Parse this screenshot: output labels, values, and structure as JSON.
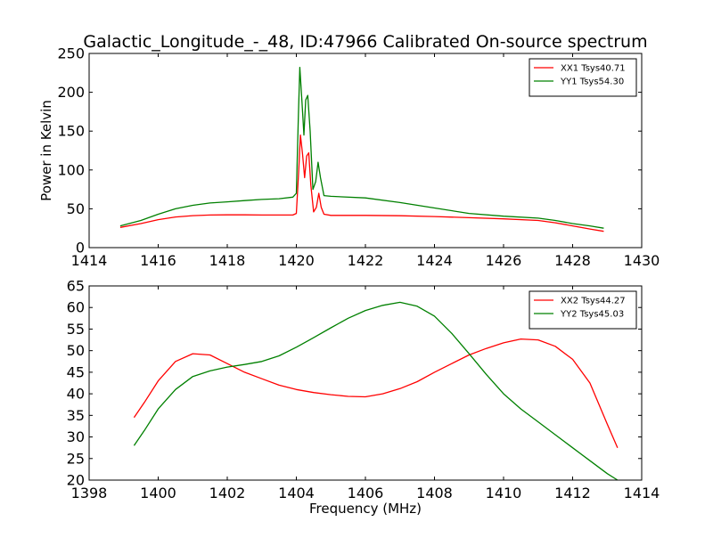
{
  "figure": {
    "title": "Galactic_Longitude_-_48, ID:47966 Calibrated On-source spectrum",
    "xlabel": "Frequency (MHz)",
    "ylabel": "Power in Kelvin"
  },
  "chart_data": [
    {
      "type": "line",
      "title": "Galactic_Longitude_-_48, ID:47966 Calibrated On-source spectrum",
      "xlabel": "",
      "ylabel": "Power in Kelvin",
      "xlim": [
        1414,
        1430
      ],
      "ylim": [
        0,
        250
      ],
      "xticks": [
        1414,
        1416,
        1418,
        1420,
        1422,
        1424,
        1426,
        1428,
        1430
      ],
      "yticks": [
        0,
        50,
        100,
        150,
        200,
        250
      ],
      "legend_position": "top-right",
      "grid": false,
      "series": [
        {
          "name": "XX1 Tsys40.71",
          "color": "#ff0000",
          "points": [
            [
              1414.9,
              26
            ],
            [
              1415.5,
              31
            ],
            [
              1416,
              36
            ],
            [
              1416.5,
              39.5
            ],
            [
              1417,
              41.2
            ],
            [
              1417.5,
              42
            ],
            [
              1418,
              42.2
            ],
            [
              1418.5,
              42.2
            ],
            [
              1419,
              42
            ],
            [
              1419.5,
              42
            ],
            [
              1419.9,
              42
            ],
            [
              1420.0,
              44
            ],
            [
              1420.07,
              100
            ],
            [
              1420.12,
              145
            ],
            [
              1420.18,
              120
            ],
            [
              1420.24,
              90
            ],
            [
              1420.3,
              118
            ],
            [
              1420.36,
              122
            ],
            [
              1420.42,
              80
            ],
            [
              1420.5,
              46
            ],
            [
              1420.58,
              52
            ],
            [
              1420.65,
              70
            ],
            [
              1420.72,
              52
            ],
            [
              1420.8,
              43
            ],
            [
              1421,
              41.5
            ],
            [
              1422,
              41.5
            ],
            [
              1423,
              41
            ],
            [
              1424,
              40
            ],
            [
              1425,
              38.5
            ],
            [
              1426,
              37
            ],
            [
              1427,
              35
            ],
            [
              1427.5,
              32
            ],
            [
              1428,
              28
            ],
            [
              1428.5,
              24
            ],
            [
              1428.9,
              21
            ]
          ]
        },
        {
          "name": "YY1 Tsys54.30",
          "color": "#008000",
          "points": [
            [
              1414.9,
              28
            ],
            [
              1415.5,
              35
            ],
            [
              1416,
              43
            ],
            [
              1416.5,
              50
            ],
            [
              1417,
              54.5
            ],
            [
              1417.5,
              57.5
            ],
            [
              1418,
              59
            ],
            [
              1418.5,
              60.5
            ],
            [
              1419,
              62
            ],
            [
              1419.5,
              63
            ],
            [
              1419.9,
              65
            ],
            [
              1420.0,
              70
            ],
            [
              1420.06,
              170
            ],
            [
              1420.1,
              232
            ],
            [
              1420.16,
              190
            ],
            [
              1420.22,
              145
            ],
            [
              1420.27,
              190
            ],
            [
              1420.33,
              196
            ],
            [
              1420.4,
              150
            ],
            [
              1420.48,
              75
            ],
            [
              1420.56,
              85
            ],
            [
              1420.63,
              110
            ],
            [
              1420.7,
              90
            ],
            [
              1420.8,
              67
            ],
            [
              1421,
              66
            ],
            [
              1422,
              64
            ],
            [
              1423,
              58
            ],
            [
              1424,
              51
            ],
            [
              1425,
              44
            ],
            [
              1426,
              40.5
            ],
            [
              1427,
              38
            ],
            [
              1427.5,
              35
            ],
            [
              1428,
              31
            ],
            [
              1428.5,
              28
            ],
            [
              1428.9,
              25
            ]
          ]
        }
      ]
    },
    {
      "type": "line",
      "title": "",
      "xlabel": "Frequency (MHz)",
      "ylabel": "",
      "xlim": [
        1398,
        1414
      ],
      "ylim": [
        20,
        65
      ],
      "xticks": [
        1398,
        1400,
        1402,
        1404,
        1406,
        1408,
        1410,
        1412,
        1414
      ],
      "yticks": [
        20,
        25,
        30,
        35,
        40,
        45,
        50,
        55,
        60,
        65
      ],
      "legend_position": "top-right",
      "grid": false,
      "series": [
        {
          "name": "XX2 Tsys44.27",
          "color": "#ff0000",
          "points": [
            [
              1399.3,
              34.5
            ],
            [
              1399.6,
              38
            ],
            [
              1400,
              43
            ],
            [
              1400.5,
              47.5
            ],
            [
              1401,
              49.3
            ],
            [
              1401.5,
              49
            ],
            [
              1402,
              47
            ],
            [
              1402.5,
              45
            ],
            [
              1403,
              43.5
            ],
            [
              1403.5,
              42
            ],
            [
              1404,
              41
            ],
            [
              1404.5,
              40.3
            ],
            [
              1405,
              39.8
            ],
            [
              1405.5,
              39.4
            ],
            [
              1406,
              39.3
            ],
            [
              1406.5,
              40
            ],
            [
              1407,
              41.2
            ],
            [
              1407.5,
              42.8
            ],
            [
              1408,
              45
            ],
            [
              1408.5,
              47
            ],
            [
              1409,
              49
            ],
            [
              1409.5,
              50.5
            ],
            [
              1410,
              51.8
            ],
            [
              1410.5,
              52.7
            ],
            [
              1411,
              52.5
            ],
            [
              1411.5,
              51
            ],
            [
              1412,
              48
            ],
            [
              1412.5,
              42.5
            ],
            [
              1413,
              33
            ],
            [
              1413.3,
              27.5
            ]
          ]
        },
        {
          "name": "YY2 Tsys45.03",
          "color": "#008000",
          "points": [
            [
              1399.3,
              28
            ],
            [
              1399.6,
              31.5
            ],
            [
              1400,
              36.5
            ],
            [
              1400.5,
              41
            ],
            [
              1401,
              44
            ],
            [
              1401.5,
              45.3
            ],
            [
              1402,
              46.2
            ],
            [
              1402.5,
              46.8
            ],
            [
              1403,
              47.5
            ],
            [
              1403.5,
              48.8
            ],
            [
              1404,
              50.8
            ],
            [
              1404.5,
              53
            ],
            [
              1405,
              55.3
            ],
            [
              1405.5,
              57.5
            ],
            [
              1406,
              59.3
            ],
            [
              1406.5,
              60.5
            ],
            [
              1407,
              61.2
            ],
            [
              1407.5,
              60.3
            ],
            [
              1408,
              58
            ],
            [
              1408.5,
              54
            ],
            [
              1409,
              49.3
            ],
            [
              1409.5,
              44.5
            ],
            [
              1410,
              40
            ],
            [
              1410.5,
              36.5
            ],
            [
              1411,
              33.5
            ],
            [
              1411.5,
              30.5
            ],
            [
              1412,
              27.5
            ],
            [
              1412.5,
              24.5
            ],
            [
              1413,
              21.5
            ],
            [
              1413.3,
              20
            ]
          ]
        }
      ]
    }
  ]
}
